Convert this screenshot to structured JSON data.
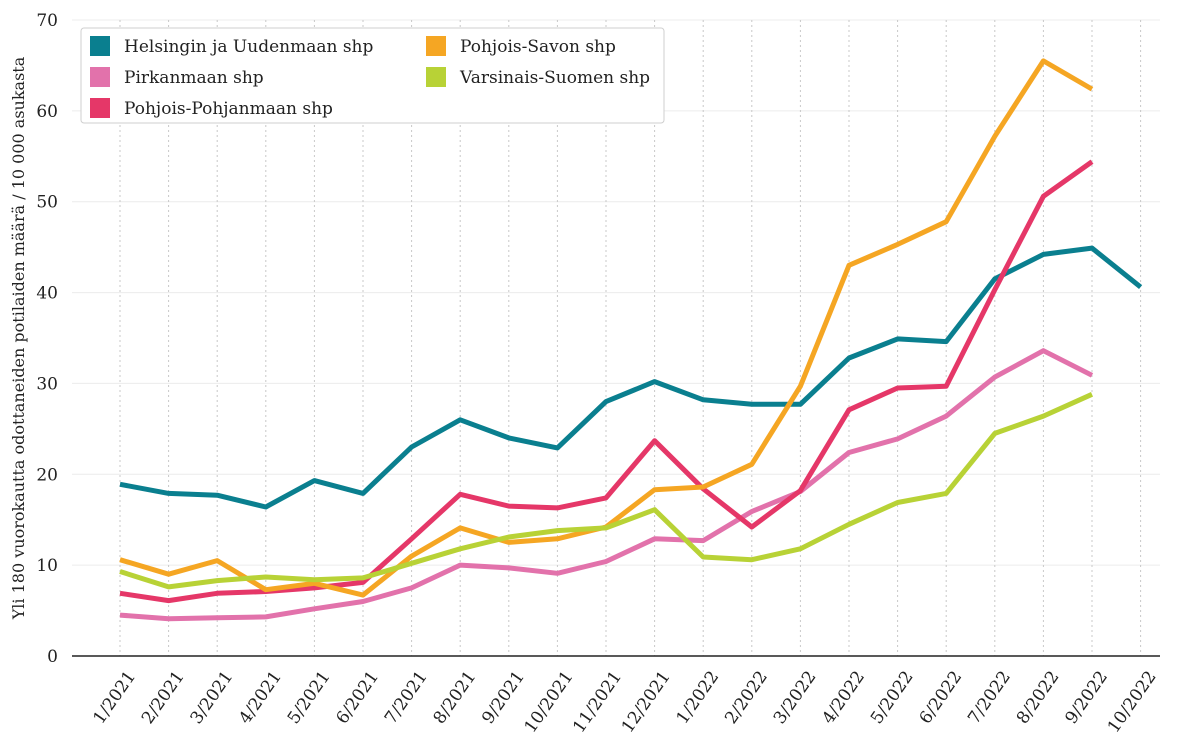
{
  "chart_data": {
    "type": "line",
    "title": "",
    "xlabel": "",
    "ylabel": "Yli 180 vuorokautta odottaneiden potilaiden määrä / 10 000 asukasta",
    "ylim": [
      0,
      70
    ],
    "yticks": [
      0,
      10,
      20,
      30,
      40,
      50,
      60,
      70
    ],
    "categories": [
      "1/2021",
      "2/2021",
      "3/2021",
      "4/2021",
      "5/2021",
      "6/2021",
      "7/2021",
      "8/2021",
      "9/2021",
      "10/2021",
      "11/2021",
      "12/2021",
      "1/2022",
      "2/2022",
      "3/2022",
      "4/2022",
      "5/2022",
      "6/2022",
      "7/2022",
      "8/2022",
      "9/2022",
      "10/2022"
    ],
    "legend_position": "top-left",
    "series": [
      {
        "name": "Helsingin ja Uudenmaan shp",
        "color": "#0a7f8f",
        "values": [
          18.9,
          17.9,
          17.7,
          16.4,
          19.3,
          17.9,
          23.0,
          26.0,
          24.0,
          22.9,
          28.0,
          30.2,
          28.2,
          27.7,
          27.7,
          32.8,
          34.9,
          34.6,
          41.5,
          44.2,
          44.9,
          40.6
        ]
      },
      {
        "name": "Pirkanmaan shp",
        "color": "#e272ab",
        "values": [
          4.5,
          4.1,
          4.2,
          4.3,
          5.2,
          6.0,
          7.5,
          10.0,
          9.7,
          9.1,
          10.4,
          12.9,
          12.7,
          15.9,
          18.1,
          22.4,
          23.9,
          26.4,
          30.7,
          33.6,
          30.9,
          null
        ]
      },
      {
        "name": "Pohjois-Pohjanmaan shp",
        "color": "#e53768",
        "values": [
          6.9,
          6.1,
          6.9,
          7.1,
          7.5,
          8.1,
          12.9,
          17.8,
          16.5,
          16.3,
          17.4,
          23.7,
          18.4,
          14.2,
          18.2,
          27.1,
          29.5,
          29.7,
          40.3,
          50.6,
          54.4,
          null
        ]
      },
      {
        "name": "Pohjois-Savon shp",
        "color": "#f5a623",
        "values": [
          10.6,
          9.0,
          10.5,
          7.3,
          8.0,
          6.7,
          11.0,
          14.1,
          12.5,
          12.9,
          14.2,
          18.3,
          18.6,
          21.1,
          29.7,
          43.0,
          45.3,
          47.8,
          57.2,
          65.5,
          62.4,
          null
        ]
      },
      {
        "name": "Varsinais-Suomen shp",
        "color": "#b8d236",
        "values": [
          9.3,
          7.6,
          8.3,
          8.7,
          8.4,
          8.6,
          10.2,
          11.8,
          13.1,
          13.8,
          14.1,
          16.1,
          10.9,
          10.6,
          11.8,
          14.5,
          16.9,
          17.9,
          24.5,
          26.4,
          28.8,
          null
        ]
      }
    ]
  }
}
